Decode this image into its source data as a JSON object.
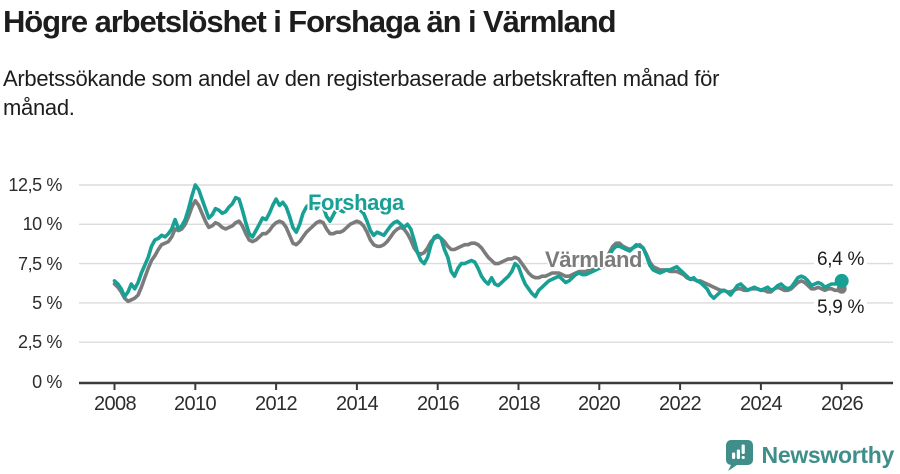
{
  "header": {
    "title": "Högre arbetslöshet i Forshaga än i Värmland",
    "subtitle_line1": "Arbetssökande som andel av den registerbaserade arbetskraften månad för",
    "subtitle_line2": "månad."
  },
  "chart_data": {
    "type": "line",
    "title": "Högre arbetslöshet i Forshaga än i Värmland",
    "subtitle": "Arbetssökande som andel av den registerbaserade arbetskraften månad för månad.",
    "unit": "%",
    "grid": "horizontal",
    "legend_position": "inline-labels",
    "x_axis": {
      "tick_values": [
        2008,
        2010,
        2012,
        2014,
        2016,
        2018,
        2020,
        2022,
        2024,
        2026
      ],
      "tick_labels": [
        "2008",
        "2010",
        "2012",
        "2014",
        "2016",
        "2018",
        "2020",
        "2022",
        "2024",
        "2026"
      ],
      "range": [
        2007.1,
        2027.3
      ]
    },
    "y_axis": {
      "tick_values": [
        0,
        2.5,
        5,
        7.5,
        10,
        12.5
      ],
      "tick_labels": [
        "0 %",
        "2,5 %",
        "5 %",
        "7,5 %",
        "10 %",
        "12,5 %"
      ],
      "range": [
        0,
        13.4
      ]
    },
    "x_start": 2008,
    "points_per_year": 12,
    "series": [
      {
        "name": "Värmland",
        "color": "#7b7b7b",
        "end_label": "5,9 %",
        "end_value": 5.9,
        "values": [
          6.2,
          6.0,
          5.7,
          5.3,
          5.1,
          5.2,
          5.3,
          5.5,
          6.0,
          6.6,
          7.2,
          7.7,
          8.0,
          8.4,
          8.7,
          8.8,
          8.9,
          9.2,
          9.7,
          9.6,
          9.7,
          10.0,
          10.5,
          11.1,
          11.5,
          11.2,
          10.7,
          10.2,
          9.8,
          9.9,
          10.1,
          10.0,
          9.8,
          9.7,
          9.8,
          9.9,
          10.1,
          10.2,
          9.9,
          9.4,
          9.0,
          8.9,
          9.0,
          9.2,
          9.4,
          9.4,
          9.6,
          9.9,
          10.1,
          10.2,
          10.1,
          9.8,
          9.3,
          8.8,
          8.7,
          8.9,
          9.2,
          9.5,
          9.7,
          9.9,
          10.1,
          10.2,
          10.1,
          9.7,
          9.4,
          9.4,
          9.5,
          9.5,
          9.6,
          9.8,
          10.0,
          10.1,
          10.2,
          10.1,
          9.9,
          9.5,
          9.0,
          8.7,
          8.6,
          8.6,
          8.7,
          8.9,
          9.2,
          9.5,
          9.7,
          9.8,
          9.7,
          9.4,
          9.0,
          8.5,
          8.2,
          8.1,
          8.2,
          8.5,
          8.9,
          9.1,
          9.2,
          9.1,
          8.9,
          8.6,
          8.4,
          8.4,
          8.5,
          8.6,
          8.7,
          8.7,
          8.8,
          8.8,
          8.7,
          8.5,
          8.2,
          7.9,
          7.7,
          7.5,
          7.5,
          7.6,
          7.7,
          7.8,
          7.8,
          7.9,
          7.8,
          7.5,
          7.2,
          6.9,
          6.7,
          6.6,
          6.6,
          6.7,
          6.7,
          6.8,
          6.9,
          6.9,
          6.9,
          6.8,
          6.7,
          6.7,
          6.8,
          6.9,
          7.0,
          7.0,
          7.0,
          7.1,
          7.1,
          7.2,
          7.3,
          7.4,
          7.7,
          8.2,
          8.6,
          8.8,
          8.8,
          8.6,
          8.5,
          8.4,
          8.5,
          8.6,
          8.7,
          8.5,
          8.1,
          7.6,
          7.3,
          7.2,
          7.1,
          7.1,
          7.1,
          7.0,
          7.0,
          7.0,
          6.9,
          6.8,
          6.6,
          6.5,
          6.5,
          6.4,
          6.4,
          6.3,
          6.2,
          6.1,
          6.0,
          5.9,
          5.8,
          5.8,
          5.7,
          5.7,
          5.8,
          5.9,
          5.9,
          5.8,
          5.8,
          5.9,
          5.9,
          5.9,
          5.8,
          5.8,
          5.7,
          5.7,
          5.9,
          6.0,
          5.9,
          5.8,
          5.8,
          5.9,
          6.1,
          6.3,
          6.4,
          6.3,
          6.1,
          5.9,
          5.9,
          6.0,
          5.9,
          5.8,
          5.9,
          5.9,
          5.8,
          5.8,
          5.9
        ]
      },
      {
        "name": "Forshaga",
        "color": "#18a095",
        "end_label": "6,4 %",
        "end_value": 6.4,
        "values": [
          6.4,
          6.2,
          5.9,
          5.4,
          5.7,
          6.2,
          5.9,
          6.3,
          6.9,
          7.4,
          7.9,
          8.6,
          9.0,
          9.1,
          9.3,
          9.2,
          9.4,
          9.7,
          10.3,
          9.7,
          9.9,
          10.3,
          11.0,
          11.8,
          12.5,
          12.2,
          11.6,
          11.0,
          10.4,
          10.6,
          11.0,
          10.9,
          10.7,
          10.8,
          11.1,
          11.3,
          11.7,
          11.6,
          10.9,
          10.1,
          9.4,
          9.2,
          9.6,
          10.0,
          10.4,
          10.3,
          10.7,
          11.2,
          11.6,
          11.2,
          11.4,
          11.1,
          10.5,
          9.8,
          9.5,
          10.0,
          10.7,
          11.1,
          11.3,
          11.2,
          11.0,
          11.3,
          11.1,
          10.5,
          10.2,
          10.6,
          11.0,
          10.9,
          10.8,
          11.0,
          11.1,
          11.2,
          11.1,
          10.9,
          10.7,
          10.2,
          9.6,
          9.3,
          9.5,
          9.4,
          9.3,
          9.6,
          9.9,
          10.1,
          10.2,
          10.0,
          9.8,
          10.0,
          9.7,
          9.0,
          8.2,
          7.7,
          7.5,
          7.9,
          8.7,
          9.2,
          9.3,
          9.1,
          8.4,
          7.9,
          7.0,
          6.7,
          7.2,
          7.5,
          7.5,
          7.6,
          7.7,
          7.6,
          7.2,
          6.7,
          6.4,
          6.2,
          6.6,
          6.2,
          6.1,
          6.3,
          6.5,
          6.7,
          7.0,
          7.5,
          7.3,
          6.7,
          6.2,
          5.9,
          5.6,
          5.4,
          5.8,
          6.0,
          6.2,
          6.4,
          6.5,
          6.6,
          6.7,
          6.5,
          6.3,
          6.4,
          6.6,
          6.8,
          6.9,
          6.8,
          6.8,
          6.9,
          7.0,
          7.1,
          7.2,
          7.3,
          7.5,
          8.0,
          8.4,
          8.6,
          8.6,
          8.5,
          8.4,
          8.3,
          8.5,
          8.7,
          8.6,
          8.5,
          8.0,
          7.4,
          7.1,
          7.0,
          6.9,
          7.0,
          7.1,
          7.1,
          7.2,
          7.3,
          7.1,
          6.9,
          6.7,
          6.5,
          6.6,
          6.4,
          6.3,
          6.1,
          5.9,
          5.5,
          5.3,
          5.5,
          5.7,
          5.8,
          5.7,
          5.5,
          5.8,
          6.1,
          6.2,
          6.0,
          5.8,
          5.9,
          6.0,
          5.9,
          5.8,
          5.9,
          6.0,
          5.8,
          5.9,
          6.1,
          6.2,
          6.0,
          5.9,
          6.0,
          6.3,
          6.6,
          6.7,
          6.6,
          6.4,
          6.1,
          6.2,
          6.3,
          6.2,
          6.0,
          6.1,
          6.2,
          6.2,
          6.3,
          6.4
        ]
      }
    ],
    "annotations": [
      {
        "text": "Forshaga",
        "color": "#18a095"
      },
      {
        "text": "Värmland",
        "color": "#7b7b7b"
      },
      {
        "text": "6,4 %"
      },
      {
        "text": "5,9 %"
      }
    ]
  },
  "colors": {
    "forshaga": "#18a095",
    "varmland": "#7b7b7b",
    "gridline": "#dcdcdc",
    "axis": "#3a3a3a",
    "text": "#1d1d1d",
    "brand": "#3f8e89"
  },
  "footer": {
    "brand": "Newsworthy",
    "logo_icon": "bar-chart-speech-bubble-icon"
  }
}
